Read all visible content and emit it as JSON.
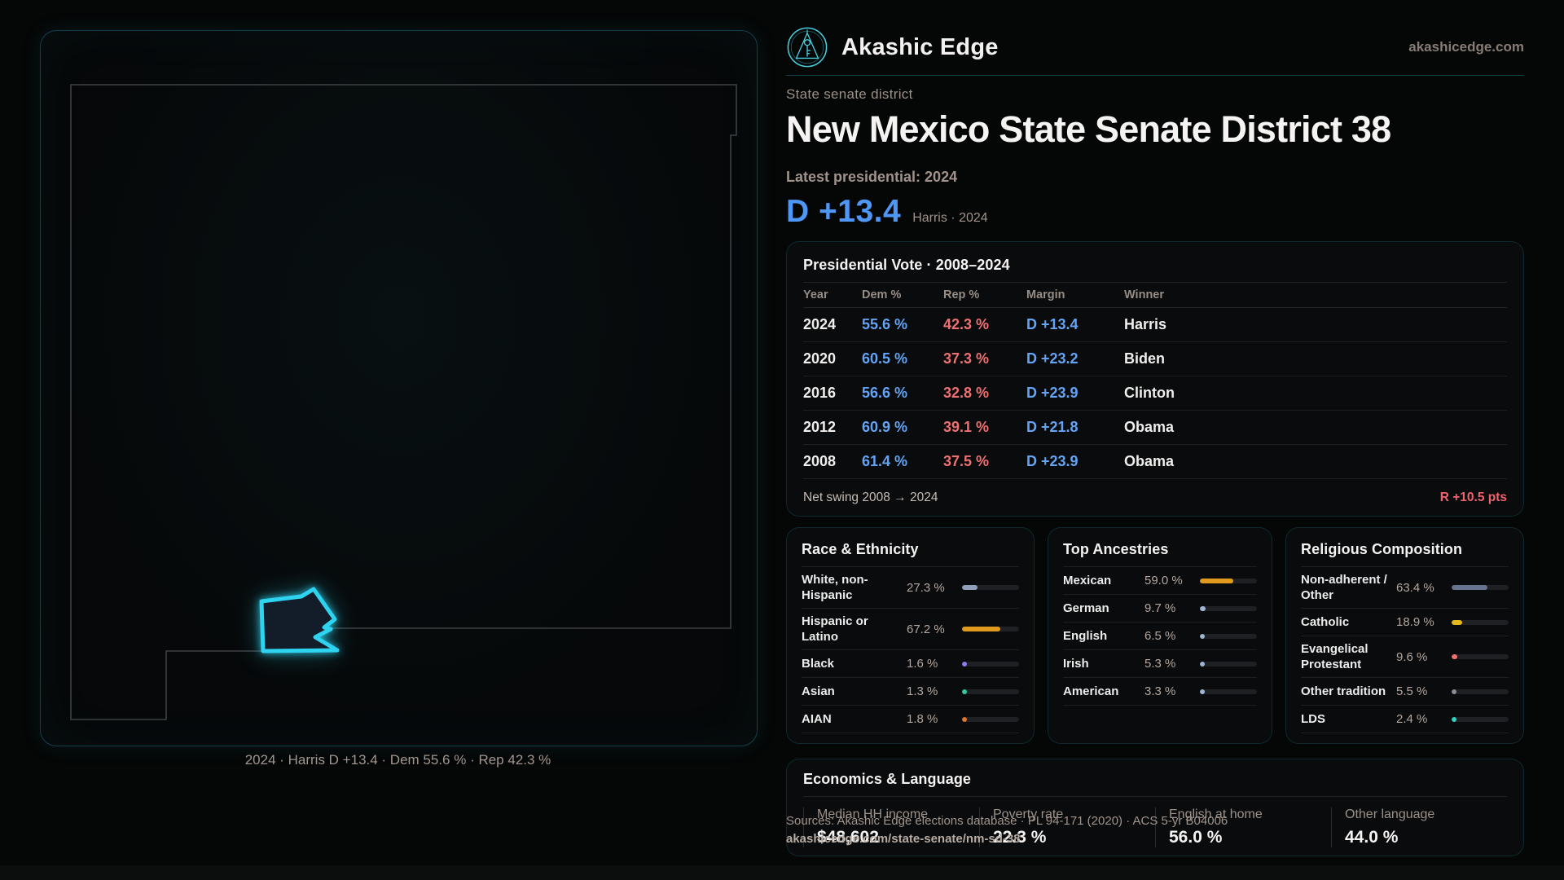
{
  "brand": {
    "name": "Akashic Edge",
    "domain": "akashicedge.com",
    "accent_teal": "#2ed3f0",
    "accent_blue": "#4f97f6",
    "accent_red": "#ef7070"
  },
  "page": {
    "kicker": "State senate district",
    "title": "New Mexico State Senate District 38",
    "latest_label": "Latest presidential: 2024",
    "margin_value": "D +13.4",
    "margin_context": "Harris · 2024"
  },
  "map": {
    "caption": "2024 · Harris D +13.4 · Dem 55.6 % · Rep 42.3 %"
  },
  "presidential_table": {
    "title": "Presidential Vote · 2008–2024",
    "columns": [
      "Year",
      "Dem %",
      "Rep %",
      "Margin",
      "Winner"
    ],
    "rows": [
      {
        "year": "2024",
        "dem": "55.6 %",
        "rep": "42.3 %",
        "margin": "D +13.4",
        "winner": "Harris"
      },
      {
        "year": "2020",
        "dem": "60.5 %",
        "rep": "37.3 %",
        "margin": "D +23.2",
        "winner": "Biden"
      },
      {
        "year": "2016",
        "dem": "56.6 %",
        "rep": "32.8 %",
        "margin": "D +23.9",
        "winner": "Clinton"
      },
      {
        "year": "2012",
        "dem": "60.9 %",
        "rep": "39.1 %",
        "margin": "D +21.8",
        "winner": "Obama"
      },
      {
        "year": "2008",
        "dem": "61.4 %",
        "rep": "37.5 %",
        "margin": "D +23.9",
        "winner": "Obama"
      }
    ],
    "net_swing_label": "Net swing 2008 → 2024",
    "net_swing_value": "R +10.5 pts"
  },
  "race_ethnicity": {
    "title": "Race & Ethnicity",
    "rows": [
      {
        "label": "White, non-Hispanic",
        "value": "27.3 %",
        "pct": 27.3,
        "color": "#8f9fba"
      },
      {
        "label": "Hispanic or Latino",
        "value": "67.2 %",
        "pct": 67.2,
        "color": "#e09b1f"
      },
      {
        "label": "Black",
        "value": "1.6 %",
        "pct": 1.6,
        "color": "#8b7cf0"
      },
      {
        "label": "Asian",
        "value": "1.3 %",
        "pct": 1.3,
        "color": "#37c9a2"
      },
      {
        "label": "AIAN",
        "value": "1.8 %",
        "pct": 1.8,
        "color": "#e0762a"
      }
    ]
  },
  "ancestries": {
    "title": "Top Ancestries",
    "rows": [
      {
        "label": "Mexican",
        "value": "59.0 %",
        "pct": 59.0,
        "color": "#e09b1f"
      },
      {
        "label": "German",
        "value": "9.7 %",
        "pct": 9.7,
        "color": "#9fb6d4"
      },
      {
        "label": "English",
        "value": "6.5 %",
        "pct": 6.5,
        "color": "#9fb6d4"
      },
      {
        "label": "Irish",
        "value": "5.3 %",
        "pct": 5.3,
        "color": "#9fb6d4"
      },
      {
        "label": "American",
        "value": "3.3 %",
        "pct": 3.3,
        "color": "#9fb6d4"
      }
    ]
  },
  "religion": {
    "title": "Religious Composition",
    "rows": [
      {
        "label": "Non-adherent / Other",
        "value": "63.4 %",
        "pct": 63.4,
        "color": "#67748f"
      },
      {
        "label": "Catholic",
        "value": "18.9 %",
        "pct": 18.9,
        "color": "#e6b81f"
      },
      {
        "label": "Evangelical Protestant",
        "value": "9.6 %",
        "pct": 9.6,
        "color": "#ef7272"
      },
      {
        "label": "Other tradition",
        "value": "5.5 %",
        "pct": 5.5,
        "color": "#8a8f96"
      },
      {
        "label": "LDS",
        "value": "2.4 %",
        "pct": 2.4,
        "color": "#2fd4be"
      }
    ]
  },
  "economics": {
    "title": "Economics & Language",
    "stats": [
      {
        "label": "Median HH income",
        "value": "$48,602"
      },
      {
        "label": "Poverty rate",
        "value": "22.3 %"
      },
      {
        "label": "English at home",
        "value": "56.0 %"
      },
      {
        "label": "Other language",
        "value": "44.0 %"
      }
    ]
  },
  "footer": {
    "sources": "Sources: Akashic Edge elections database · PL 94-171 (2020) · ACS 5-yr B04006",
    "permalink": "akashicedge.com/state-senate/nm-sd-38"
  }
}
